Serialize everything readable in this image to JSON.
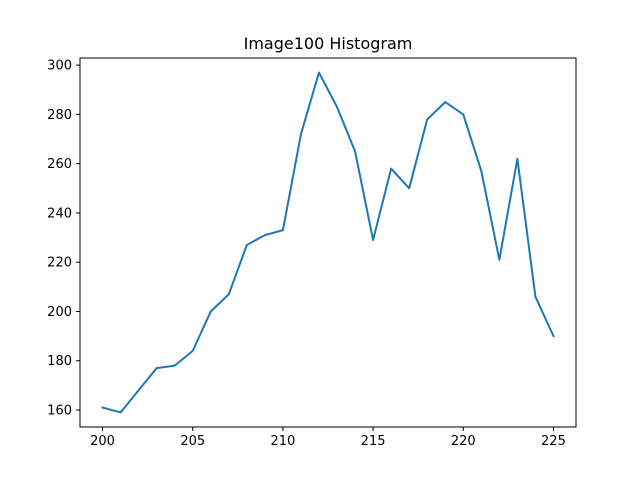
{
  "chart_data": {
    "type": "line",
    "title": "Image100 Histogram",
    "xlabel": "",
    "ylabel": "",
    "xlim": [
      198.75,
      226.25
    ],
    "ylim": [
      153.1,
      302.9
    ],
    "xticks": [
      200,
      205,
      210,
      215,
      220,
      225
    ],
    "yticks": [
      160,
      180,
      200,
      220,
      240,
      260,
      280,
      300
    ],
    "grid": false,
    "series": [
      {
        "color": "#1f77b4",
        "x": [
          200,
          201,
          202,
          203,
          204,
          205,
          206,
          207,
          208,
          209,
          210,
          211,
          212,
          213,
          214,
          215,
          216,
          217,
          218,
          219,
          220,
          221,
          222,
          223,
          224,
          225
        ],
        "y": [
          161,
          159,
          168,
          177,
          178,
          184,
          200,
          207,
          227,
          231,
          233,
          272,
          297,
          283,
          265,
          229,
          258,
          250,
          278,
          285,
          280,
          257,
          221,
          262,
          206,
          190
        ]
      }
    ]
  }
}
